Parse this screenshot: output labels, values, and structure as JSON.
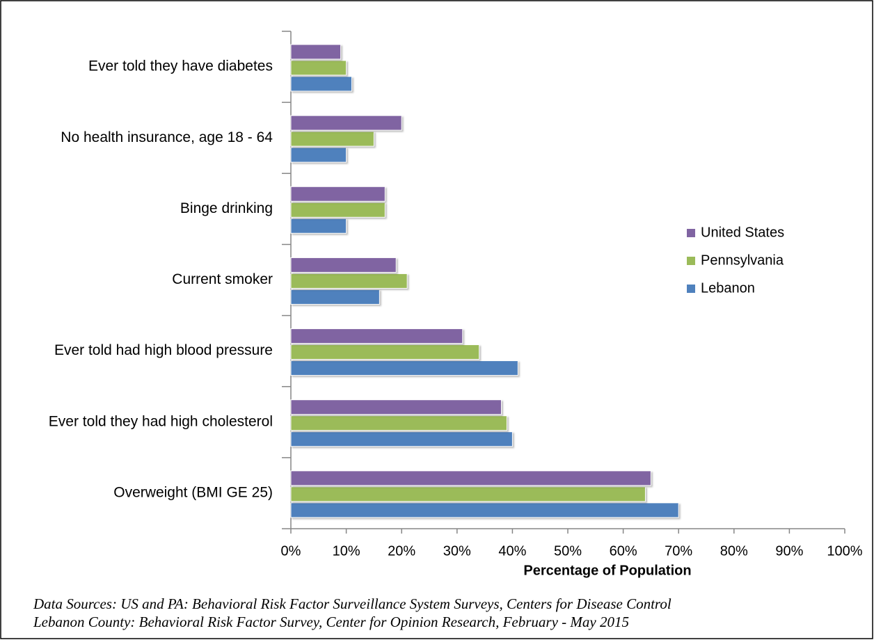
{
  "chart_data": {
    "type": "bar",
    "orientation": "horizontal",
    "categories": [
      "Ever told they have diabetes",
      "No health insurance, age 18 - 64",
      "Binge drinking",
      "Current smoker",
      "Ever told had high blood pressure",
      "Ever told they had high cholesterol",
      "Overweight (BMI GE 25)"
    ],
    "series": [
      {
        "name": "Lebanon",
        "color": "#4f81bd",
        "values": [
          11,
          10,
          10,
          16,
          41,
          40,
          70
        ]
      },
      {
        "name": "Pennsylvania",
        "color": "#9bbb59",
        "values": [
          10,
          15,
          17,
          21,
          34,
          39,
          64
        ]
      },
      {
        "name": "United States",
        "color": "#8064a2",
        "values": [
          9,
          20,
          17,
          19,
          31,
          38,
          65
        ]
      }
    ],
    "xlim": [
      0,
      100
    ],
    "xticks": [
      {
        "value": 0,
        "label": "0%"
      },
      {
        "value": 10,
        "label": "10%"
      },
      {
        "value": 20,
        "label": "20%"
      },
      {
        "value": 30,
        "label": "30%"
      },
      {
        "value": 40,
        "label": "40%"
      },
      {
        "value": 50,
        "label": "50%"
      },
      {
        "value": 60,
        "label": "60%"
      },
      {
        "value": 70,
        "label": "70%"
      },
      {
        "value": 80,
        "label": "80%"
      },
      {
        "value": 90,
        "label": "90%"
      },
      {
        "value": 100,
        "label": "100%"
      }
    ],
    "xlabel": "Percentage of Population",
    "legend": "right",
    "notes": [
      "Data Sources: US and PA: Behavioral Risk Factor Surveillance System Surveys, Centers for Disease Control",
      "Lebanon County: Behavioral Risk Factor Survey, Center for Opinion Research, February - May 2015"
    ]
  }
}
